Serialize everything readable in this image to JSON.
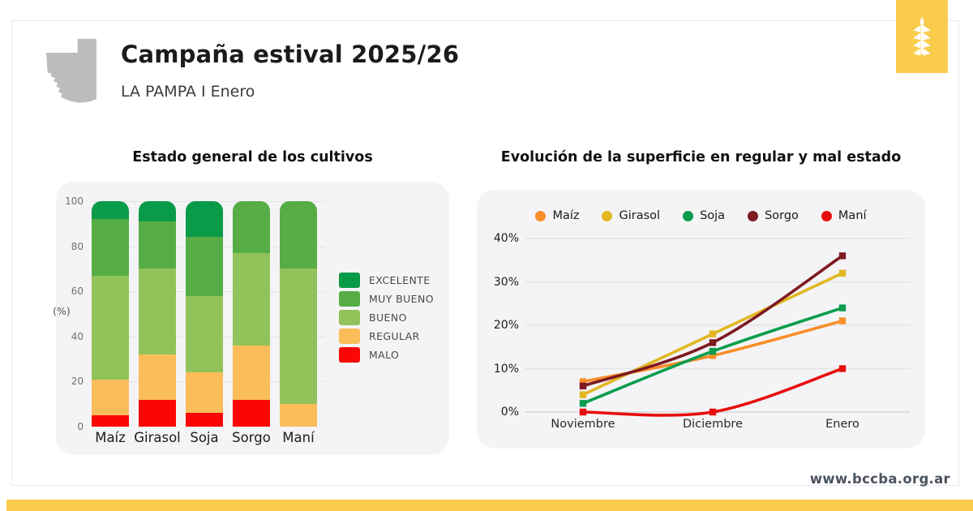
{
  "header": {
    "title": "Campaña estival 2025/26",
    "subtitle": "LA PAMPA I Enero",
    "region_icon": "la-pampa-province-silhouette",
    "brand_icon": "wheat-spike"
  },
  "footer": {
    "url": "www.bccba.org.ar"
  },
  "colors": {
    "accent_yellow": "#FBCB4B",
    "panel_gray": "#F4F4F6",
    "map_gray": "#BCBCBC"
  },
  "chart_data": [
    {
      "type": "bar",
      "stacked": true,
      "title": "Estado general de los cultivos",
      "ylabel": "(%)",
      "ylim": [
        0,
        100
      ],
      "yticks": [
        0,
        20,
        40,
        60,
        80,
        100
      ],
      "grid": true,
      "legend_position": "right",
      "legend_order": [
        "EXCELENTE",
        "MUY BUENO",
        "BUENO",
        "REGULAR",
        "MALO"
      ],
      "categories": [
        "Maíz",
        "Girasol",
        "Soja",
        "Sorgo",
        "Maní"
      ],
      "series": [
        {
          "name": "MALO",
          "color": "#FB0505",
          "values": [
            5,
            12,
            6,
            12,
            0
          ]
        },
        {
          "name": "REGULAR",
          "color": "#FBBD59",
          "values": [
            16,
            20,
            18,
            24,
            10
          ]
        },
        {
          "name": "BUENO",
          "color": "#92C35A",
          "values": [
            46,
            38,
            34,
            41,
            60
          ]
        },
        {
          "name": "MUY BUENO",
          "color": "#56AD45",
          "values": [
            25,
            21,
            26,
            23,
            30
          ]
        },
        {
          "name": "EXCELENTE",
          "color": "#0A9B48",
          "values": [
            8,
            9,
            16,
            0,
            0
          ]
        }
      ]
    },
    {
      "type": "line",
      "title": "Evolución de la superficie en regular y mal estado",
      "x": [
        "Noviembre",
        "Diciembre",
        "Enero"
      ],
      "ylim": [
        0,
        40
      ],
      "yticks": [
        0,
        10,
        20,
        30,
        40
      ],
      "ytick_suffix": "%",
      "grid": true,
      "legend_position": "top",
      "series": [
        {
          "name": "Maíz",
          "color": "#F88E2A",
          "values": [
            7,
            13,
            21
          ]
        },
        {
          "name": "Girasol",
          "color": "#E2B722",
          "values": [
            4,
            18,
            32
          ]
        },
        {
          "name": "Soja",
          "color": "#0A9D4E",
          "values": [
            2,
            14,
            24
          ]
        },
        {
          "name": "Sorgo",
          "color": "#7E1A21",
          "values": [
            6,
            16,
            36
          ]
        },
        {
          "name": "Maní",
          "color": "#E80D0D",
          "values": [
            0,
            0,
            10
          ]
        }
      ]
    }
  ]
}
